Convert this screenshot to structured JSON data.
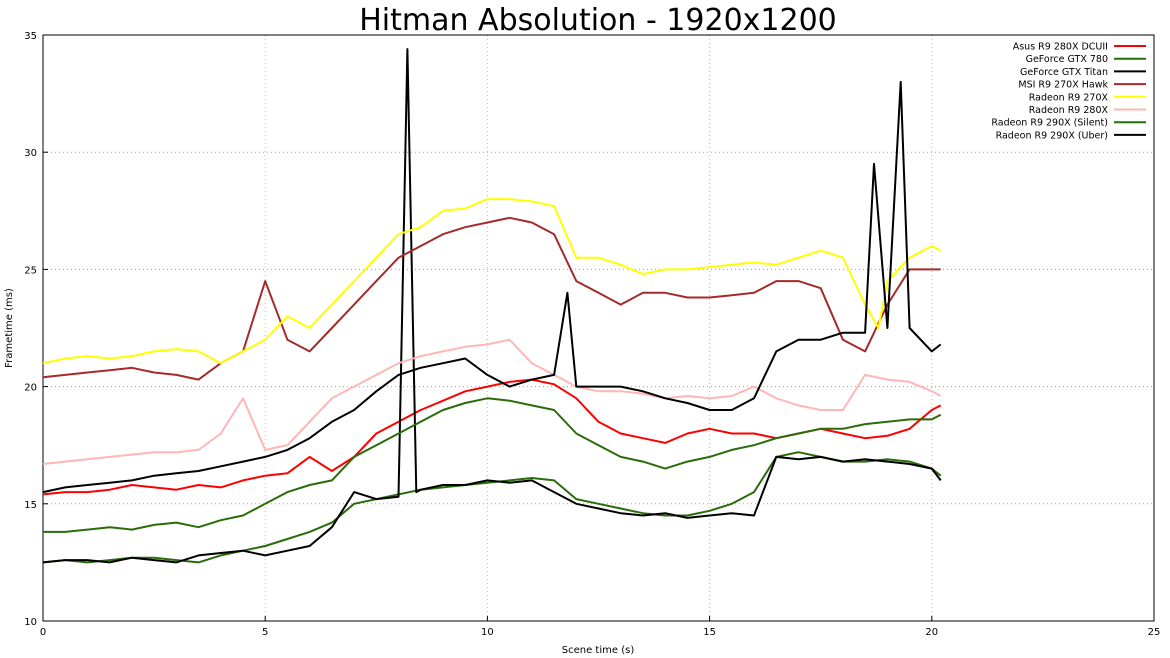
{
  "chart_data": {
    "type": "line",
    "title": "Hitman Absolution - 1920x1200",
    "xlabel": "Scene time (s)",
    "ylabel": "Frametime (ms)",
    "xlim": [
      0,
      25
    ],
    "ylim": [
      10,
      35
    ],
    "x_ticks": [
      0,
      5,
      10,
      15,
      20,
      25
    ],
    "y_ticks": [
      10,
      15,
      20,
      25,
      30,
      35
    ],
    "grid": true,
    "legend_position": "top-right",
    "series": [
      {
        "name": "Asus R9 280X DCUII",
        "color": "#ff0000",
        "x": [
          0,
          0.5,
          1,
          1.5,
          2,
          2.5,
          3,
          3.5,
          4,
          4.5,
          5,
          5.5,
          6,
          6.5,
          7,
          7.5,
          8,
          8.5,
          9,
          9.5,
          10,
          10.5,
          11,
          11.5,
          12,
          12.5,
          13,
          13.5,
          14,
          14.5,
          15,
          15.5,
          16,
          16.5,
          17,
          17.5,
          18,
          18.5,
          19,
          19.5,
          20,
          20.2
        ],
        "y": [
          15.4,
          15.5,
          15.5,
          15.6,
          15.8,
          15.7,
          15.6,
          15.8,
          15.7,
          16.0,
          16.2,
          16.3,
          17.0,
          16.4,
          17.0,
          18.0,
          18.5,
          19.0,
          19.4,
          19.8,
          20.0,
          20.2,
          20.3,
          20.1,
          19.5,
          18.5,
          18.0,
          17.8,
          17.6,
          18.0,
          18.2,
          18.0,
          18.0,
          17.8,
          18.0,
          18.2,
          18.0,
          17.8,
          17.9,
          18.2,
          19.0,
          19.2
        ]
      },
      {
        "name": "GeForce GTX 780",
        "color": "#2a6b0a",
        "x": [
          0,
          0.5,
          1,
          1.5,
          2,
          2.5,
          3,
          3.5,
          4,
          4.5,
          5,
          5.5,
          6,
          6.5,
          7,
          7.5,
          8,
          8.5,
          9,
          9.5,
          10,
          10.5,
          11,
          11.5,
          12,
          12.5,
          13,
          13.5,
          14,
          14.5,
          15,
          15.5,
          16,
          16.5,
          17,
          17.5,
          18,
          18.5,
          19,
          19.5,
          20,
          20.2
        ],
        "y": [
          12.5,
          12.6,
          12.5,
          12.6,
          12.7,
          12.7,
          12.6,
          12.5,
          12.8,
          13.0,
          13.2,
          13.5,
          13.8,
          14.2,
          15.0,
          15.2,
          15.4,
          15.6,
          15.7,
          15.8,
          15.9,
          16.0,
          16.1,
          16.0,
          15.2,
          15.0,
          14.8,
          14.6,
          14.5,
          14.5,
          14.7,
          15.0,
          15.5,
          17.0,
          17.2,
          17.0,
          16.8,
          16.8,
          16.9,
          16.8,
          16.5,
          16.2
        ]
      },
      {
        "name": "GeForce GTX Titan",
        "color": "#000000",
        "x": [
          0,
          0.5,
          1,
          1.5,
          2,
          2.5,
          3,
          3.5,
          4,
          4.5,
          5,
          5.5,
          6,
          6.5,
          7,
          7.5,
          8,
          8.2,
          8.4,
          8.5,
          9,
          9.5,
          10,
          10.5,
          11,
          11.5,
          12,
          12.5,
          13,
          13.5,
          14,
          14.5,
          15,
          15.5,
          16,
          16.5,
          17,
          17.5,
          18,
          18.5,
          19,
          19.5,
          20,
          20.2
        ],
        "y": [
          12.5,
          12.6,
          12.6,
          12.5,
          12.7,
          12.6,
          12.5,
          12.8,
          12.9,
          13.0,
          12.8,
          13.0,
          13.2,
          14.0,
          15.5,
          15.2,
          15.3,
          34.4,
          15.5,
          15.6,
          15.8,
          15.8,
          16.0,
          15.9,
          16.0,
          15.5,
          15.0,
          14.8,
          14.6,
          14.5,
          14.6,
          14.4,
          14.5,
          14.6,
          14.5,
          17.0,
          16.9,
          17.0,
          16.8,
          16.9,
          16.8,
          16.7,
          16.5,
          16.0
        ]
      },
      {
        "name": "MSI R9 270X Hawk",
        "color": "#a52a2a",
        "x": [
          0,
          0.5,
          1,
          1.5,
          2,
          2.5,
          3,
          3.5,
          4,
          4.5,
          5,
          5.5,
          6,
          6.5,
          7,
          7.5,
          8,
          8.5,
          9,
          9.5,
          10,
          10.5,
          11,
          11.5,
          12,
          12.5,
          13,
          13.5,
          14,
          14.5,
          15,
          15.5,
          16,
          16.5,
          17,
          17.5,
          18,
          18.5,
          19,
          19.5,
          20,
          20.2
        ],
        "y": [
          20.4,
          20.5,
          20.6,
          20.7,
          20.8,
          20.6,
          20.5,
          20.3,
          21.0,
          21.5,
          24.5,
          22.0,
          21.5,
          22.5,
          23.5,
          24.5,
          25.5,
          26.0,
          26.5,
          26.8,
          27.0,
          27.2,
          27.0,
          26.5,
          24.5,
          24.0,
          23.5,
          24.0,
          24.0,
          23.8,
          23.8,
          23.9,
          24.0,
          24.5,
          24.5,
          24.2,
          22.0,
          21.5,
          23.5,
          25.0,
          25.0,
          25.0
        ]
      },
      {
        "name": "Radeon R9 270X",
        "color": "#ffff00",
        "x": [
          0,
          0.5,
          1,
          1.5,
          2,
          2.5,
          3,
          3.5,
          4,
          4.5,
          5,
          5.5,
          6,
          6.5,
          7,
          7.5,
          8,
          8.5,
          9,
          9.5,
          10,
          10.5,
          11,
          11.5,
          12,
          12.5,
          13,
          13.5,
          14,
          14.5,
          15,
          15.5,
          16,
          16.5,
          17,
          17.5,
          18,
          18.5,
          18.8,
          19,
          19.5,
          20,
          20.2
        ],
        "y": [
          21.0,
          21.2,
          21.3,
          21.2,
          21.3,
          21.5,
          21.6,
          21.5,
          21.0,
          21.5,
          22.0,
          23.0,
          22.5,
          23.5,
          24.5,
          25.5,
          26.5,
          26.8,
          27.5,
          27.6,
          28.0,
          28.0,
          27.9,
          27.7,
          25.5,
          25.5,
          25.2,
          24.8,
          25.0,
          25.0,
          25.1,
          25.2,
          25.3,
          25.2,
          25.5,
          25.8,
          25.5,
          23.5,
          22.5,
          24.5,
          25.5,
          26.0,
          25.8
        ]
      },
      {
        "name": "Radeon R9 280X",
        "color": "#ffb6b6",
        "x": [
          0,
          0.5,
          1,
          1.5,
          2,
          2.5,
          3,
          3.5,
          4,
          4.5,
          5,
          5.5,
          6,
          6.5,
          7,
          7.5,
          8,
          8.5,
          9,
          9.5,
          10,
          10.5,
          11,
          11.5,
          12,
          12.5,
          13,
          13.5,
          14,
          14.5,
          15,
          15.5,
          16,
          16.5,
          17,
          17.5,
          18,
          18.5,
          19,
          19.5,
          20,
          20.2
        ],
        "y": [
          16.7,
          16.8,
          16.9,
          17.0,
          17.1,
          17.2,
          17.2,
          17.3,
          18.0,
          19.5,
          17.3,
          17.5,
          18.5,
          19.5,
          20.0,
          20.5,
          21.0,
          21.3,
          21.5,
          21.7,
          21.8,
          22.0,
          21.0,
          20.5,
          20.0,
          19.8,
          19.8,
          19.7,
          19.5,
          19.6,
          19.5,
          19.6,
          20.0,
          19.5,
          19.2,
          19.0,
          19.0,
          20.5,
          20.3,
          20.2,
          19.8,
          19.6
        ]
      },
      {
        "name": "Radeon R9 290X (Silent)",
        "color": "#2a6b0a",
        "x": [
          0,
          0.5,
          1,
          1.5,
          2,
          2.5,
          3,
          3.5,
          4,
          4.5,
          5,
          5.5,
          6,
          6.5,
          7,
          7.5,
          8,
          8.5,
          9,
          9.5,
          10,
          10.5,
          11,
          11.5,
          12,
          12.5,
          13,
          13.5,
          14,
          14.5,
          15,
          15.5,
          16,
          16.5,
          17,
          17.5,
          18,
          18.5,
          19,
          19.5,
          20,
          20.2
        ],
        "y": [
          13.8,
          13.8,
          13.9,
          14.0,
          13.9,
          14.1,
          14.2,
          14.0,
          14.3,
          14.5,
          15.0,
          15.5,
          15.8,
          16.0,
          17.0,
          17.5,
          18.0,
          18.5,
          19.0,
          19.3,
          19.5,
          19.4,
          19.2,
          19.0,
          18.0,
          17.5,
          17.0,
          16.8,
          16.5,
          16.8,
          17.0,
          17.3,
          17.5,
          17.8,
          18.0,
          18.2,
          18.2,
          18.4,
          18.5,
          18.6,
          18.6,
          18.8
        ]
      },
      {
        "name": "Radeon R9 290X (Uber)",
        "color": "#000000",
        "x": [
          0,
          0.5,
          1,
          1.5,
          2,
          2.5,
          3,
          3.5,
          4,
          4.5,
          5,
          5.5,
          6,
          6.5,
          7,
          7.5,
          8,
          8.5,
          9,
          9.5,
          10,
          10.5,
          11,
          11.5,
          11.8,
          12,
          12.5,
          13,
          13.5,
          14,
          14.5,
          15,
          15.5,
          16,
          16.5,
          17,
          17.5,
          18,
          18.5,
          18.7,
          19,
          19.3,
          19.5,
          20,
          20.2
        ],
        "y": [
          15.5,
          15.7,
          15.8,
          15.9,
          16.0,
          16.2,
          16.3,
          16.4,
          16.6,
          16.8,
          17.0,
          17.3,
          17.8,
          18.5,
          19.0,
          19.8,
          20.5,
          20.8,
          21.0,
          21.2,
          20.5,
          20.0,
          20.3,
          20.5,
          24.0,
          20.0,
          20.0,
          20.0,
          19.8,
          19.5,
          19.3,
          19.0,
          19.0,
          19.5,
          21.5,
          22.0,
          22.0,
          22.3,
          22.3,
          29.5,
          22.5,
          33.0,
          22.5,
          21.5,
          21.8
        ]
      }
    ]
  }
}
